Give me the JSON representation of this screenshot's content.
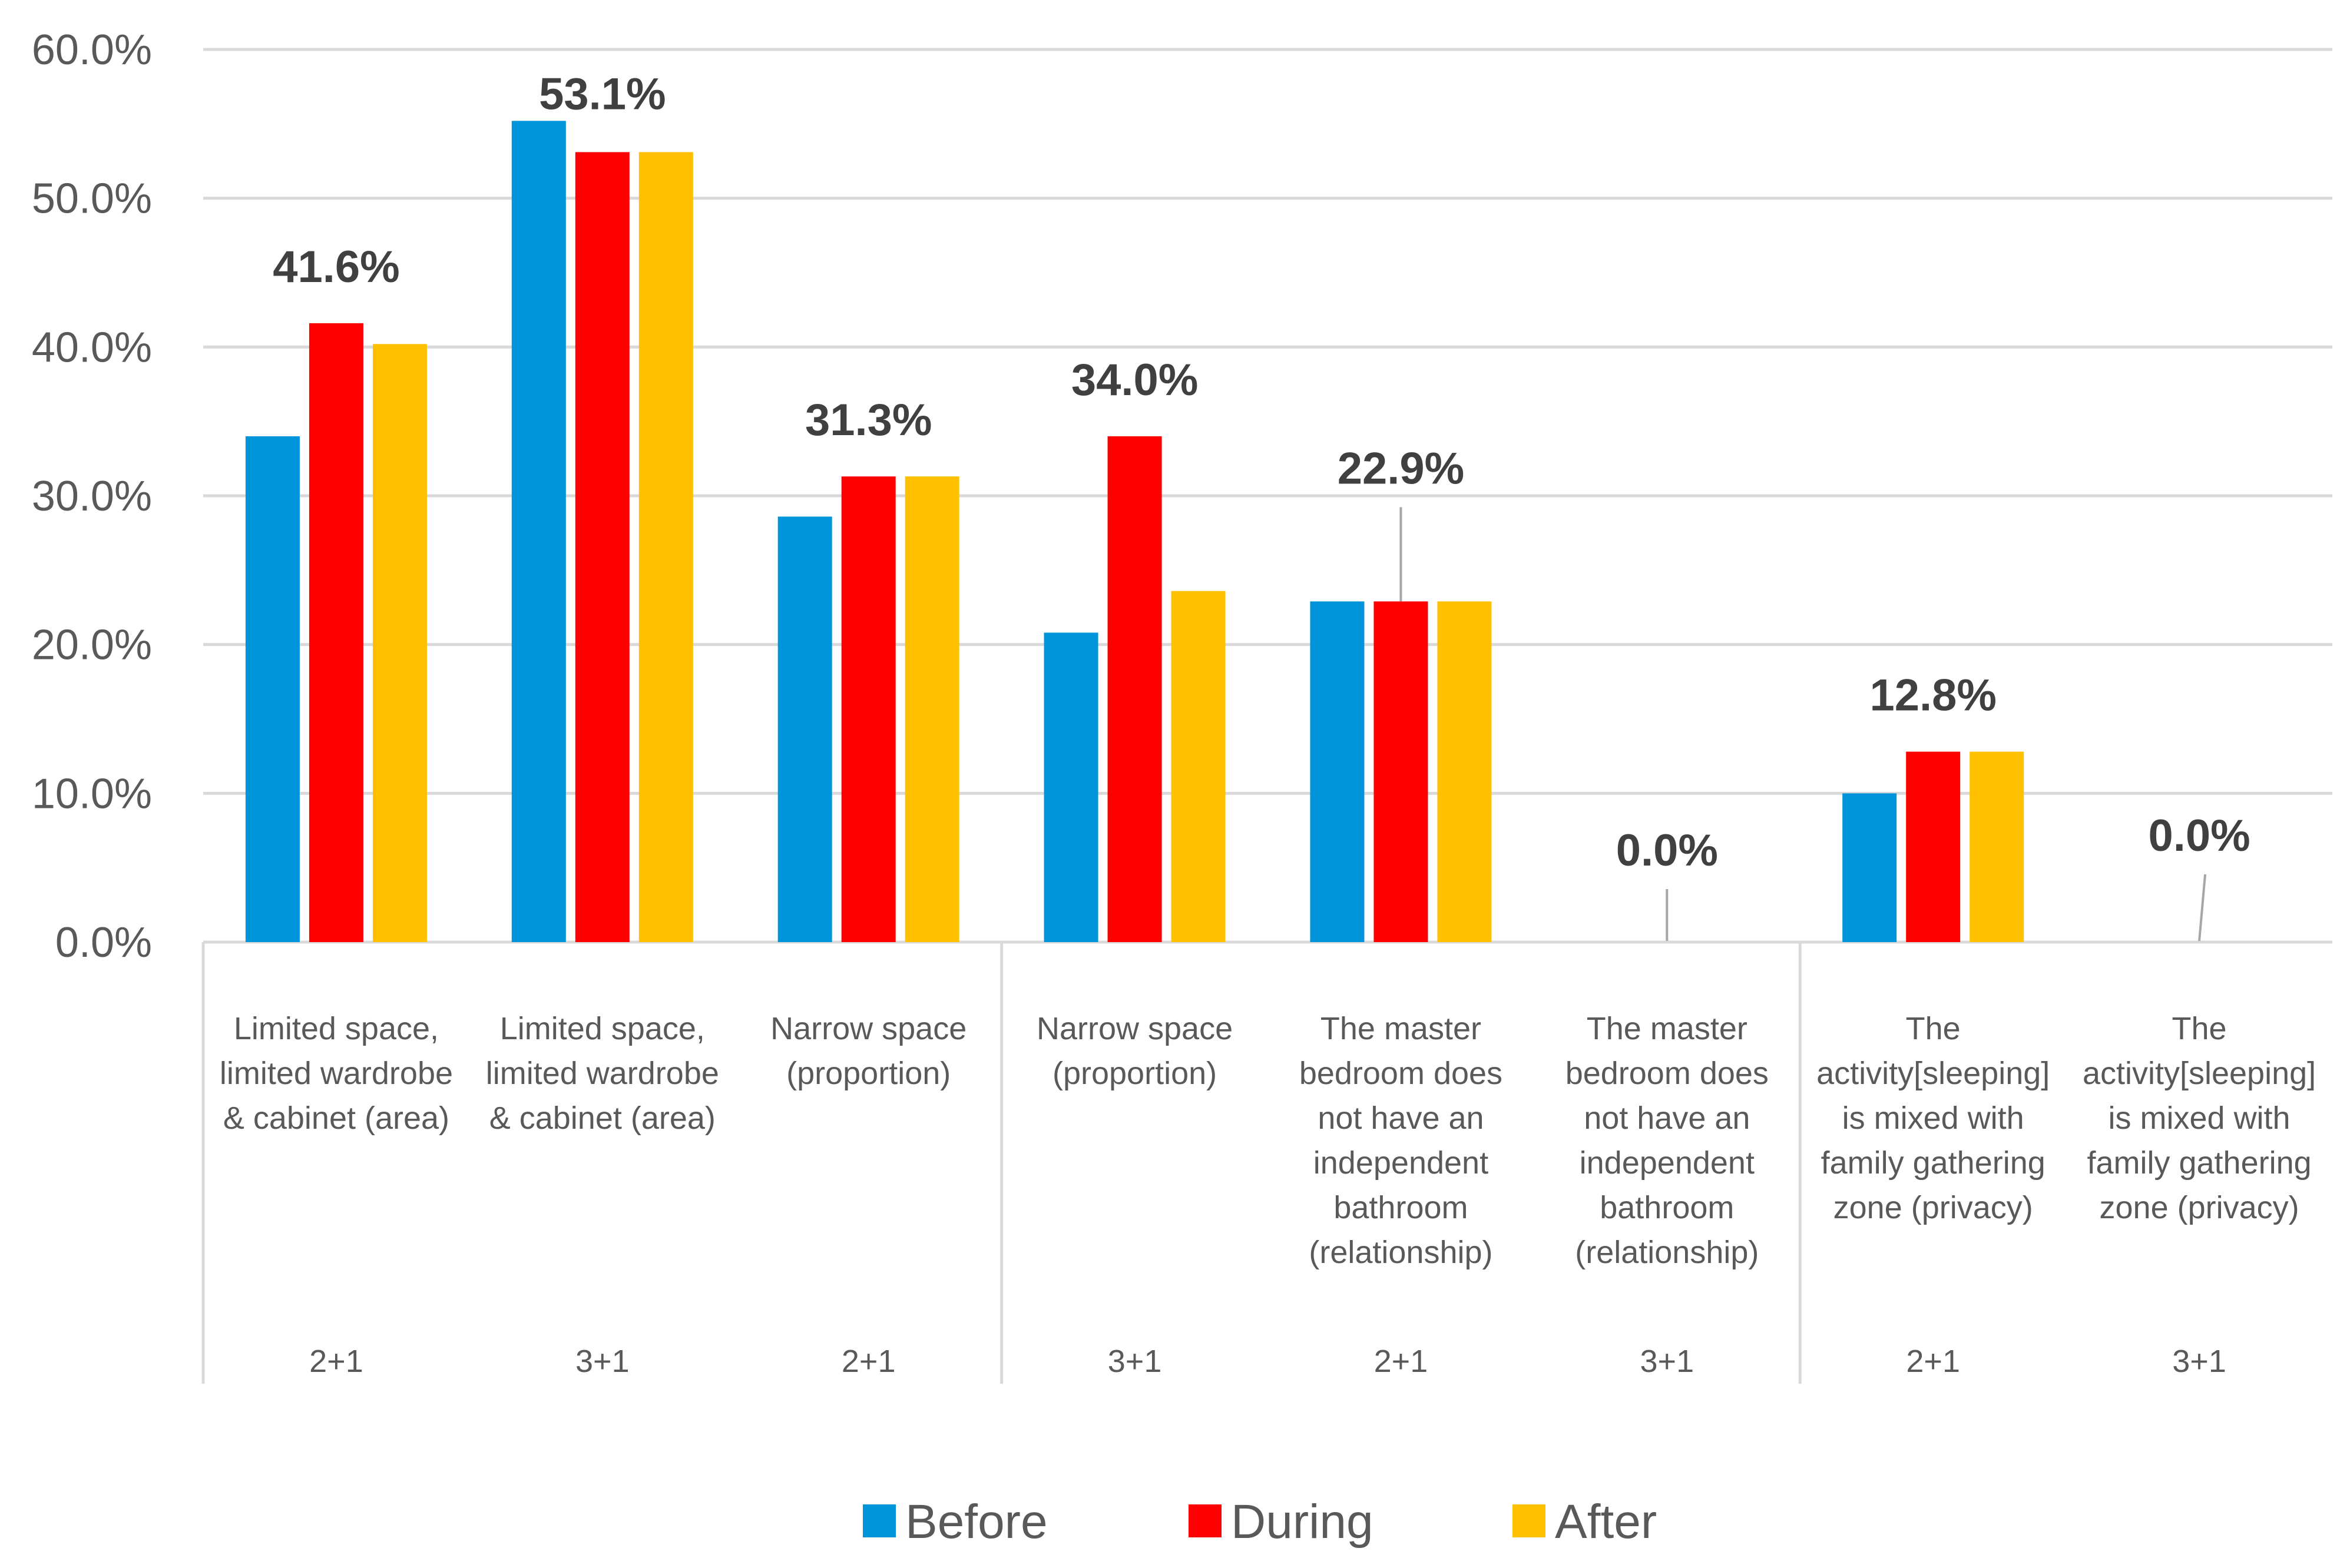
{
  "chart_data": {
    "type": "bar",
    "title": "",
    "xlabel": "",
    "ylabel": "",
    "ylim": [
      0,
      0.6
    ],
    "yticks": [
      "0.0%",
      "10.0%",
      "20.0%",
      "30.0%",
      "40.0%",
      "50.0%",
      "60.0%"
    ],
    "grid": true,
    "legend_position": "bottom",
    "categories": [
      {
        "lines": [
          "Limited space,",
          "limited wardrobe",
          "& cabinet (area)"
        ],
        "group": "2+1"
      },
      {
        "lines": [
          "Limited space,",
          "limited wardrobe",
          "& cabinet (area)"
        ],
        "group": "3+1"
      },
      {
        "lines": [
          "Narrow space",
          "(proportion)"
        ],
        "group": "2+1"
      },
      {
        "lines": [
          "Narrow space",
          "(proportion)"
        ],
        "group": "3+1"
      },
      {
        "lines": [
          "The master",
          "bedroom does",
          "not have an",
          "independent",
          "bathroom",
          "(relationship)"
        ],
        "group": "2+1"
      },
      {
        "lines": [
          "The master",
          "bedroom does",
          "not have an",
          "independent",
          "bathroom",
          "(relationship)"
        ],
        "group": "3+1"
      },
      {
        "lines": [
          "The",
          "activity[sleeping]",
          "is mixed with",
          "family gathering",
          "zone (privacy)"
        ],
        "group": "2+1"
      },
      {
        "lines": [
          "The",
          "activity[sleeping]",
          "is mixed with",
          "family gathering",
          "zone (privacy)"
        ],
        "group": "3+1"
      }
    ],
    "series": [
      {
        "name": "Before",
        "color": "#0095DA",
        "values": [
          0.34,
          0.552,
          0.286,
          0.208,
          0.229,
          0.0,
          0.1,
          0.0
        ]
      },
      {
        "name": "During",
        "color": "#FF0000",
        "values": [
          0.416,
          0.531,
          0.313,
          0.34,
          0.229,
          0.0,
          0.128,
          0.0
        ]
      },
      {
        "name": "After",
        "color": "#FFC000",
        "values": [
          0.402,
          0.531,
          0.313,
          0.236,
          0.229,
          0.0,
          0.128,
          0.0
        ]
      }
    ],
    "data_labels": [
      "41.6%",
      "53.1%",
      "31.3%",
      "34.0%",
      "22.9%",
      "0.0%",
      "12.8%",
      "0.0%"
    ]
  }
}
